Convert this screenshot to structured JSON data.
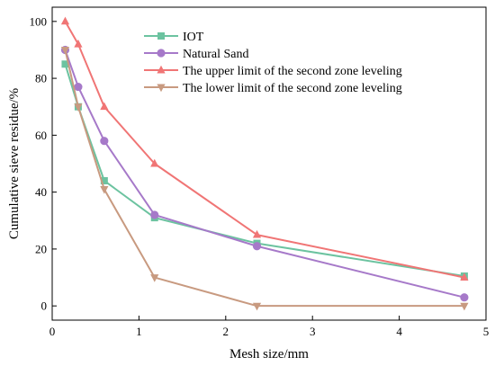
{
  "chart_data": {
    "type": "line",
    "xlabel": "Mesh size/mm",
    "ylabel": "Cumulative sieve residue/%",
    "xlim": [
      0,
      5
    ],
    "ylim": [
      -5,
      105
    ],
    "x_ticks": [
      0,
      1,
      2,
      3,
      4,
      5
    ],
    "y_ticks": [
      0,
      20,
      40,
      60,
      80,
      100
    ],
    "grid": false,
    "legend_position": "top-center",
    "series": [
      {
        "name": "IOT",
        "color": "#6cc3a0",
        "marker": "square",
        "x": [
          0.15,
          0.3,
          0.6,
          1.18,
          2.36,
          4.75
        ],
        "y": [
          85,
          70,
          44,
          31,
          22,
          10.5
        ]
      },
      {
        "name": "Natural Sand",
        "color": "#a679c9",
        "marker": "circle",
        "x": [
          0.15,
          0.3,
          0.6,
          1.18,
          2.36,
          4.75
        ],
        "y": [
          90,
          77,
          58,
          32,
          21,
          3
        ]
      },
      {
        "name": "The upper limit of the second zone leveling",
        "color": "#f07575",
        "marker": "triangle-up",
        "x": [
          0.15,
          0.3,
          0.6,
          1.18,
          2.36,
          4.75
        ],
        "y": [
          100,
          92,
          70,
          50,
          25,
          10
        ]
      },
      {
        "name": "The lower limit of the second zone leveling",
        "color": "#c89a80",
        "marker": "triangle-down",
        "x": [
          0.15,
          0.3,
          0.6,
          1.18,
          2.36,
          4.75
        ],
        "y": [
          90,
          70,
          41,
          10,
          0,
          0
        ]
      }
    ]
  }
}
